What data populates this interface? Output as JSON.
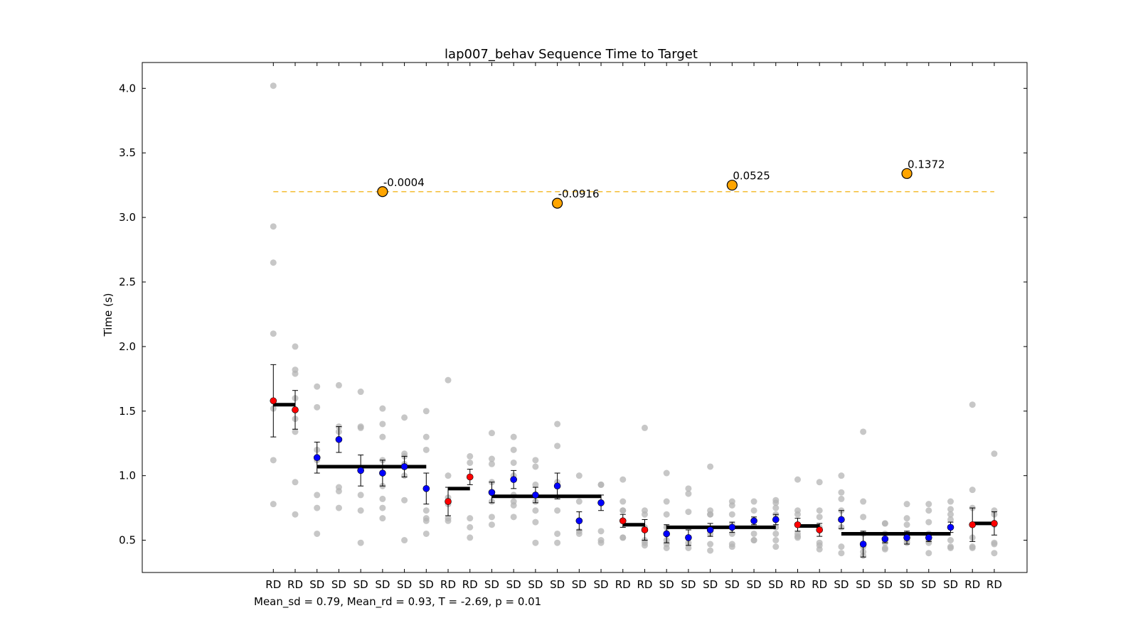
{
  "chart_data": {
    "type": "scatter",
    "title": "lap007_behav Sequence Time to Target",
    "ylabel": "Time (s)",
    "xlabel": "",
    "ylim": [
      0.25,
      4.2
    ],
    "yticks": [
      0.5,
      1.0,
      1.5,
      2.0,
      2.5,
      3.0,
      3.5,
      4.0
    ],
    "ytick_labels": [
      "0.5",
      "1.0",
      "1.5",
      "2.0",
      "2.5",
      "3.0",
      "3.5",
      "4.0"
    ],
    "grid": false,
    "categories": [
      "RD",
      "RD",
      "SD",
      "SD",
      "SD",
      "SD",
      "SD",
      "SD",
      "RD",
      "RD",
      "SD",
      "SD",
      "SD",
      "SD",
      "SD",
      "SD",
      "RD",
      "RD",
      "SD",
      "SD",
      "SD",
      "SD",
      "SD",
      "SD",
      "RD",
      "RD",
      "SD",
      "SD",
      "SD",
      "SD",
      "SD",
      "SD",
      "RD",
      "RD"
    ],
    "means": [
      1.58,
      1.51,
      1.14,
      1.28,
      1.04,
      1.02,
      1.07,
      0.9,
      0.8,
      0.99,
      0.87,
      0.97,
      0.85,
      0.92,
      0.65,
      0.79,
      0.65,
      0.58,
      0.55,
      0.52,
      0.58,
      0.6,
      0.65,
      0.66,
      0.62,
      0.58,
      0.66,
      0.47,
      0.51,
      0.52,
      0.52,
      0.6,
      0.62,
      0.63
    ],
    "errors": [
      0.28,
      0.15,
      0.12,
      0.1,
      0.12,
      0.1,
      0.08,
      0.12,
      0.11,
      0.06,
      0.08,
      0.07,
      0.06,
      0.1,
      0.07,
      0.06,
      0.05,
      0.08,
      0.07,
      0.06,
      0.05,
      0.04,
      0.03,
      0.04,
      0.05,
      0.05,
      0.07,
      0.1,
      0.03,
      0.05,
      0.03,
      0.04,
      0.13,
      0.09
    ],
    "samples": [
      [
        4.02,
        2.93,
        2.65,
        2.1,
        1.58,
        1.52,
        1.12,
        0.78
      ],
      [
        2.0,
        1.82,
        1.79,
        1.6,
        1.51,
        1.44,
        1.34,
        0.95,
        0.7
      ],
      [
        1.69,
        1.53,
        1.2,
        1.12,
        0.85,
        0.75,
        0.55
      ],
      [
        1.7,
        1.38,
        1.34,
        0.91,
        0.88,
        0.75
      ],
      [
        1.65,
        1.38,
        1.37,
        1.04,
        0.85,
        0.73,
        0.48
      ],
      [
        1.52,
        1.4,
        1.3,
        1.12,
        0.92,
        0.82,
        0.75,
        0.67
      ],
      [
        1.45,
        1.17,
        1.15,
        1.09,
        1.0,
        0.81,
        0.5
      ],
      [
        1.5,
        1.3,
        1.2,
        0.9,
        0.73,
        0.67,
        0.65,
        0.55
      ],
      [
        1.74,
        1.0,
        0.83,
        0.8,
        0.78,
        0.67,
        0.65
      ],
      [
        1.15,
        1.1,
        0.99,
        0.67,
        0.6,
        0.52
      ],
      [
        1.33,
        1.13,
        1.09,
        0.95,
        0.8,
        0.68,
        0.62
      ],
      [
        1.3,
        1.2,
        1.1,
        1.0,
        0.85,
        0.8,
        0.77,
        0.68
      ],
      [
        1.12,
        1.07,
        0.93,
        0.8,
        0.73,
        0.64,
        0.48
      ],
      [
        1.4,
        1.23,
        0.95,
        0.73,
        0.55,
        0.48
      ],
      [
        1.0,
        0.8,
        0.57,
        0.55
      ],
      [
        0.93,
        0.93,
        0.57,
        0.5,
        0.48
      ],
      [
        0.97,
        0.8,
        0.73,
        0.73,
        0.52,
        0.52
      ],
      [
        1.37,
        0.73,
        0.7,
        0.6,
        0.5,
        0.48,
        0.46
      ],
      [
        1.02,
        0.8,
        0.7,
        0.6,
        0.5,
        0.47,
        0.44
      ],
      [
        0.9,
        0.86,
        0.72,
        0.52,
        0.48,
        0.44
      ],
      [
        1.07,
        0.73,
        0.7,
        0.7,
        0.55,
        0.47,
        0.42
      ],
      [
        0.8,
        0.77,
        0.7,
        0.62,
        0.55,
        0.47,
        0.45
      ],
      [
        0.8,
        0.73,
        0.65,
        0.55,
        0.5,
        0.5
      ],
      [
        0.81,
        0.79,
        0.75,
        0.7,
        0.6,
        0.55,
        0.5,
        0.45
      ],
      [
        0.97,
        0.73,
        0.7,
        0.62,
        0.55,
        0.53,
        0.52
      ],
      [
        0.95,
        0.73,
        0.68,
        0.6,
        0.48,
        0.46,
        0.43
      ],
      [
        1.0,
        0.87,
        0.82,
        0.73,
        0.6,
        0.45,
        0.4
      ],
      [
        1.34,
        0.8,
        0.68,
        0.55,
        0.45,
        0.41,
        0.38
      ],
      [
        0.63,
        0.63,
        0.55,
        0.5,
        0.48,
        0.44,
        0.43
      ],
      [
        0.78,
        0.67,
        0.62,
        0.55,
        0.5,
        0.48
      ],
      [
        0.78,
        0.73,
        0.64,
        0.55,
        0.5,
        0.48,
        0.4
      ],
      [
        0.8,
        0.74,
        0.7,
        0.66,
        0.6,
        0.5,
        0.45,
        0.44
      ],
      [
        1.55,
        0.89,
        0.75,
        0.62,
        0.52,
        0.45,
        0.44
      ],
      [
        1.17,
        0.73,
        0.7,
        0.62,
        0.48,
        0.47,
        0.4
      ]
    ],
    "block_means": [
      {
        "start": 1,
        "end": 2,
        "value": 1.55
      },
      {
        "start": 3,
        "end": 8,
        "value": 1.07
      },
      {
        "start": 9,
        "end": 10,
        "value": 0.9
      },
      {
        "start": 11,
        "end": 16,
        "value": 0.84
      },
      {
        "start": 17,
        "end": 18,
        "value": 0.62
      },
      {
        "start": 19,
        "end": 24,
        "value": 0.6
      },
      {
        "start": 25,
        "end": 26,
        "value": 0.61
      },
      {
        "start": 27,
        "end": 32,
        "value": 0.55
      },
      {
        "start": 33,
        "end": 34,
        "value": 0.63
      }
    ],
    "reference_line": {
      "y": 3.2,
      "x_start": 1,
      "x_end": 34,
      "color": "#f5c242"
    },
    "correlations": [
      {
        "x": 6,
        "y": 3.2,
        "label": "-0.0004"
      },
      {
        "x": 14,
        "y": 3.11,
        "label": "-0.0916"
      },
      {
        "x": 22,
        "y": 3.25,
        "label": "0.0525"
      },
      {
        "x": 30,
        "y": 3.34,
        "label": "0.1372"
      }
    ],
    "colors": {
      "rd": "#ff0000",
      "sd": "#0000ff",
      "sample": "#b4b4b4",
      "correlation_marker": "#ffa500",
      "block_mean": "#000000"
    }
  },
  "footer_text": "Mean_sd = 0.79, Mean_rd = 0.93, T = -2.69, p = 0.01"
}
